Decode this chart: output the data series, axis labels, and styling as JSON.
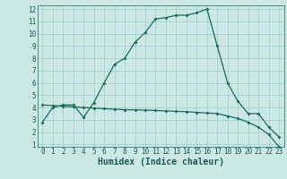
{
  "xlabel": "Humidex (Indice chaleur)",
  "bg_color": "#cce8e4",
  "grid_color": "#99cccc",
  "line_color": "#1a6b5a",
  "curve1_x": [
    0,
    1,
    2,
    3,
    4,
    5,
    6,
    7,
    8,
    9,
    10,
    11,
    12,
    13,
    14,
    15,
    16,
    17,
    18,
    19,
    20,
    21,
    22,
    23
  ],
  "curve1_y": [
    2.8,
    4.0,
    4.2,
    4.2,
    3.2,
    4.4,
    6.0,
    7.5,
    8.0,
    9.3,
    10.1,
    11.2,
    11.3,
    11.5,
    11.5,
    11.7,
    12.0,
    9.0,
    6.0,
    4.5,
    3.5,
    3.5,
    2.4,
    1.6
  ],
  "curve2_x": [
    0,
    1,
    2,
    3,
    4,
    5,
    6,
    7,
    8,
    9,
    10,
    11,
    12,
    13,
    14,
    15,
    16,
    17,
    18,
    19,
    20,
    21,
    22,
    23
  ],
  "curve2_y": [
    4.2,
    4.15,
    4.1,
    4.05,
    4.0,
    3.95,
    3.9,
    3.85,
    3.82,
    3.8,
    3.78,
    3.75,
    3.72,
    3.68,
    3.65,
    3.6,
    3.55,
    3.5,
    3.3,
    3.1,
    2.8,
    2.4,
    1.8,
    0.8
  ],
  "xlim": [
    -0.5,
    23.5
  ],
  "ylim": [
    0.8,
    12.3
  ],
  "yticks": [
    1,
    2,
    3,
    4,
    5,
    6,
    7,
    8,
    9,
    10,
    11,
    12
  ],
  "xticks": [
    0,
    1,
    2,
    3,
    4,
    5,
    6,
    7,
    8,
    9,
    10,
    11,
    12,
    13,
    14,
    15,
    16,
    17,
    18,
    19,
    20,
    21,
    22,
    23
  ],
  "font_color": "#1a5a50",
  "xlabel_fontsize": 7,
  "tick_fontsize": 5.5
}
